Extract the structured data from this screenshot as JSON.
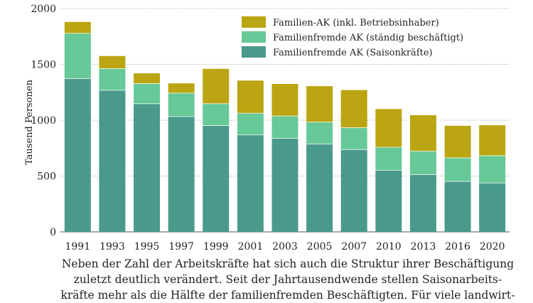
{
  "chart_data": {
    "type": "bar",
    "stacked": true,
    "ylabel": "Tausend Personen",
    "ylim": [
      0,
      2000
    ],
    "yticks": [
      0,
      500,
      1000,
      1500,
      2000
    ],
    "grid": "horizontal dotted",
    "legend_position": "top-right",
    "categories": [
      "1991",
      "1993",
      "1995",
      "1997",
      "1999",
      "2001",
      "2003",
      "2005",
      "2007",
      "2010",
      "2013",
      "2016",
      "2020"
    ],
    "series": [
      {
        "name": "Familienfremde AK (Saisonkräfte)",
        "color": "#4a9a8c",
        "values": [
          1375,
          1270,
          1150,
          1035,
          955,
          870,
          840,
          790,
          740,
          555,
          515,
          455,
          440
        ]
      },
      {
        "name": "Familienfremde AK (ständig beschäftigt)",
        "color": "#66c997",
        "values": [
          405,
          195,
          180,
          210,
          195,
          195,
          200,
          195,
          195,
          205,
          210,
          210,
          245
        ]
      },
      {
        "name": "Familien-AK (inkl. Betriebsinhaber)",
        "color": "#bba512",
        "values": [
          100,
          110,
          90,
          85,
          310,
          290,
          285,
          320,
          335,
          340,
          320,
          285,
          270
        ]
      }
    ]
  },
  "caption": {
    "lines": [
      "Neben der Zahl der Arbeitskräfte hat sich auch die Struktur ihrer Beschäftigung",
      "zuletzt deutlich verändert. Seit der Jahrtausendwende stellen Saisonarbeits-",
      "kräfte mehr als die Hälfte der familienfremden Beschäftigten. Für viele landwirt-"
    ]
  }
}
